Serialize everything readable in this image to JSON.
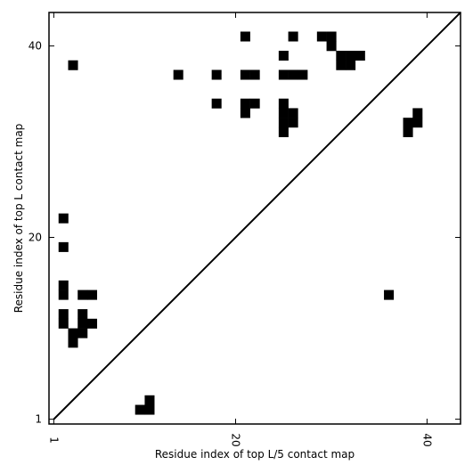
{
  "chart_data": {
    "type": "heatmap",
    "title": "",
    "xlabel": "Residue index of top L/5 contact map",
    "ylabel": "Residue index of top L contact map",
    "xlim": [
      0.5,
      43.5
    ],
    "ylim": [
      0.5,
      43.5
    ],
    "x_ticks": [
      1,
      20,
      40
    ],
    "y_ticks": [
      1,
      20,
      40
    ],
    "x_tick_labels": [
      "1",
      "20",
      "40"
    ],
    "y_tick_labels": [
      "1",
      "20",
      "40"
    ],
    "x_tick_rotation": -90,
    "diagonal": true,
    "cell_color": "#000000",
    "background_color": "#ffffff",
    "grid": false,
    "cells": [
      [
        21,
        41
      ],
      [
        26,
        41
      ],
      [
        29,
        41
      ],
      [
        30,
        41
      ],
      [
        30,
        40
      ],
      [
        25,
        39
      ],
      [
        31,
        39
      ],
      [
        32,
        39
      ],
      [
        33,
        39
      ],
      [
        31,
        38
      ],
      [
        32,
        38
      ],
      [
        3,
        38
      ],
      [
        14,
        37
      ],
      [
        18,
        37
      ],
      [
        21,
        37
      ],
      [
        22,
        37
      ],
      [
        25,
        37
      ],
      [
        26,
        37
      ],
      [
        27,
        37
      ],
      [
        18,
        34
      ],
      [
        21,
        34
      ],
      [
        22,
        34
      ],
      [
        25,
        34
      ],
      [
        21,
        33
      ],
      [
        25,
        33
      ],
      [
        26,
        33
      ],
      [
        25,
        32
      ],
      [
        26,
        32
      ],
      [
        25,
        31
      ],
      [
        38,
        32
      ],
      [
        39,
        32
      ],
      [
        39,
        33
      ],
      [
        38,
        31
      ],
      [
        2,
        22
      ],
      [
        2,
        19
      ],
      [
        2,
        15
      ],
      [
        2,
        14
      ],
      [
        4,
        14
      ],
      [
        5,
        14
      ],
      [
        36,
        14
      ],
      [
        2,
        12
      ],
      [
        2,
        11
      ],
      [
        4,
        12
      ],
      [
        4,
        11
      ],
      [
        5,
        11
      ],
      [
        3,
        10
      ],
      [
        4,
        10
      ],
      [
        3,
        9
      ],
      [
        10,
        2
      ],
      [
        11,
        2
      ],
      [
        11,
        3
      ]
    ]
  }
}
